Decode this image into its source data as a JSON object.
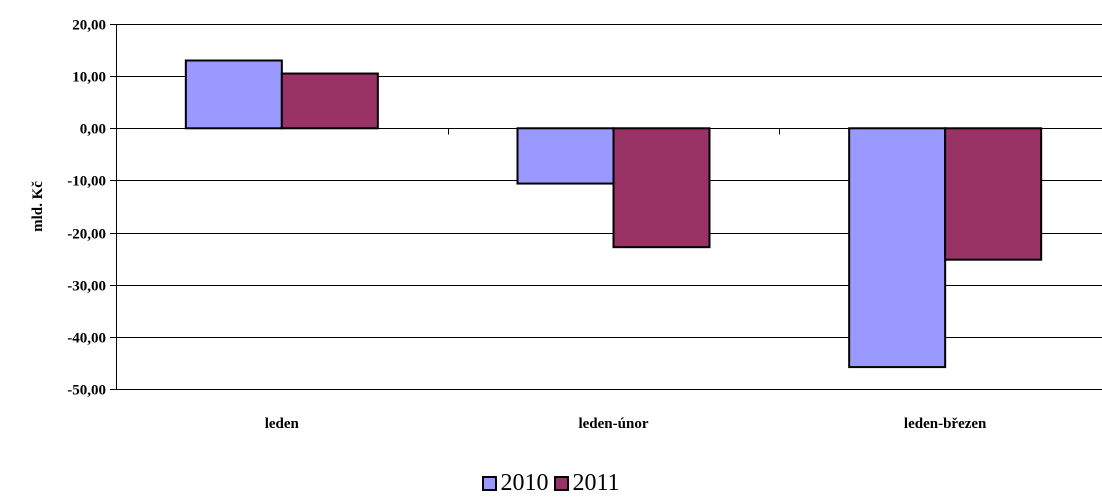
{
  "chart_data": {
    "type": "bar",
    "categories": [
      "leden",
      "leden-únor",
      "leden-březen"
    ],
    "series": [
      {
        "name": "2010",
        "values": [
          13.0,
          -10.6,
          -45.8
        ],
        "color": "#9999ff"
      },
      {
        "name": "2011",
        "values": [
          10.5,
          -22.8,
          -25.2
        ],
        "color": "#993366"
      }
    ],
    "xlabel": "",
    "ylabel": "mld. Kč",
    "ylim": [
      -50,
      20
    ],
    "yticks": [
      "20,00",
      "10,00",
      "0,00",
      "-10,00",
      "-20,00",
      "-30,00",
      "-40,00",
      "-50,00"
    ],
    "ytick_values": [
      20,
      10,
      0,
      -10,
      -20,
      -30,
      -40,
      -50
    ],
    "grid": true,
    "legend_position": "bottom"
  }
}
